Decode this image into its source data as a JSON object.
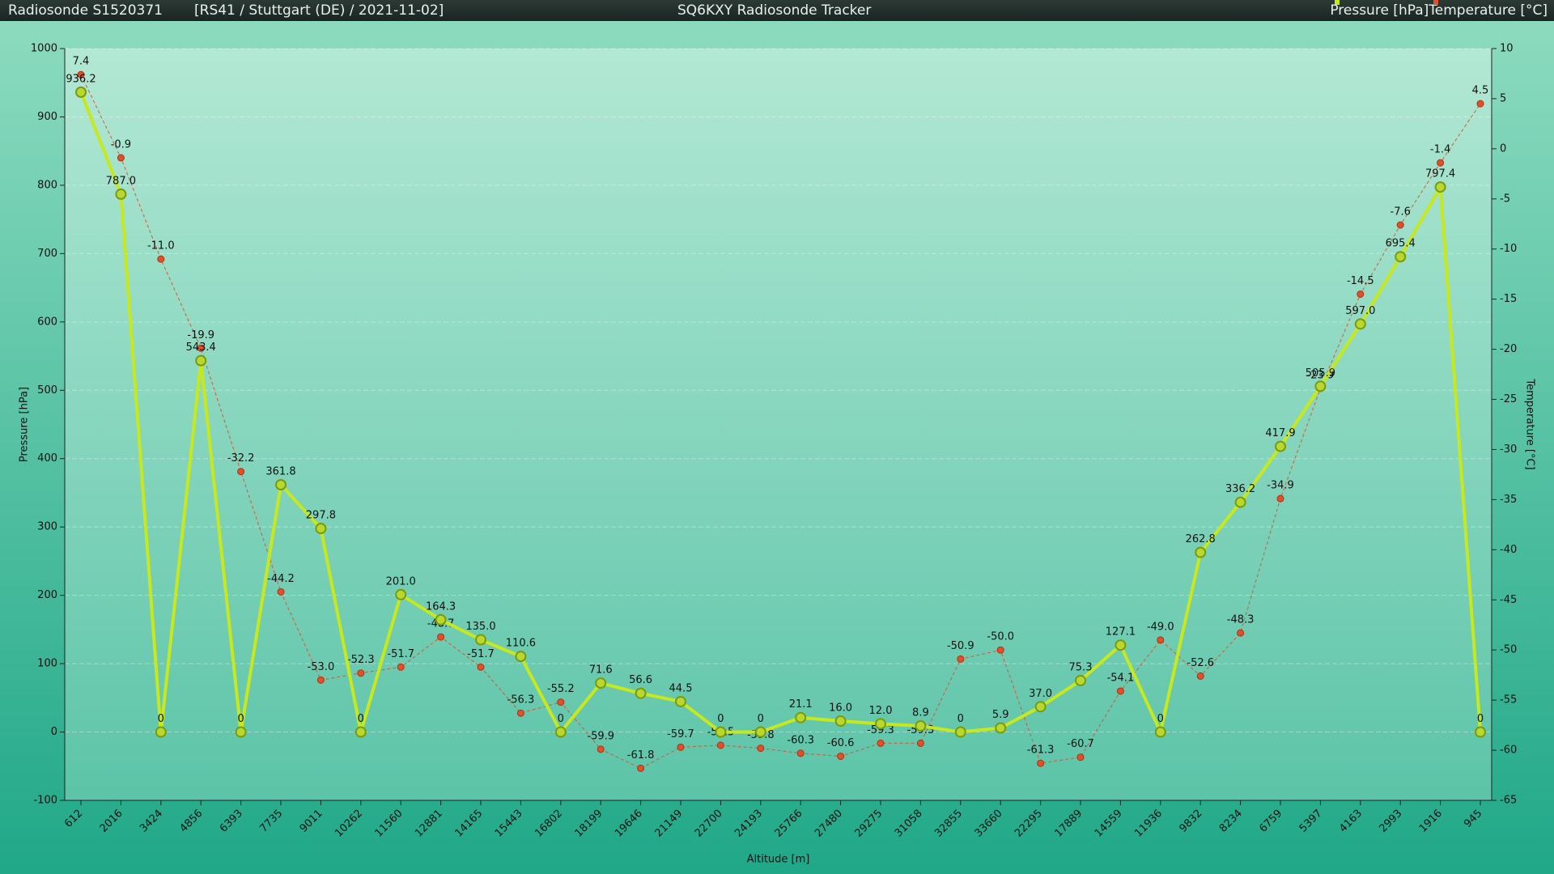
{
  "header": {
    "sonde": "Radiosonde S1520371",
    "info": "[RS41 / Stuttgart (DE) / 2021-11-02]",
    "app_title": "SQ6KXY Radiosonde Tracker"
  },
  "chart_data": {
    "type": "line",
    "x_label": "Altitude [m]",
    "y_label": "Pressure [hPa]",
    "y2_label": "Temperature [°C]",
    "categories": [
      "612",
      "2016",
      "3424",
      "4856",
      "6393",
      "7735",
      "9011",
      "10262",
      "11560",
      "12881",
      "14165",
      "15443",
      "16802",
      "18199",
      "19646",
      "21149",
      "22700",
      "24193",
      "25766",
      "27480",
      "29275",
      "31058",
      "32855",
      "33660",
      "22295",
      "17889",
      "14559",
      "11936",
      "9832",
      "8234",
      "6759",
      "5397",
      "4163",
      "2993",
      "1916",
      "945"
    ],
    "ylim": [
      -100,
      1000
    ],
    "yticks": [
      -100,
      0,
      100,
      200,
      300,
      400,
      500,
      600,
      700,
      800,
      900,
      1000
    ],
    "y2lim": [
      -65,
      10
    ],
    "y2ticks": [
      -65,
      -60,
      -55,
      -50,
      -45,
      -40,
      -35,
      -30,
      -25,
      -20,
      -15,
      -10,
      -5,
      0,
      5,
      10
    ],
    "grid": true,
    "legend": "top-right",
    "series": [
      {
        "name": "Pressure [hPa]",
        "color": "#c8e81e",
        "axis": "y",
        "values": [
          936.2,
          787.0,
          0,
          543.4,
          0,
          361.8,
          297.8,
          0,
          201.0,
          164.3,
          135.0,
          110.6,
          0,
          71.6,
          56.6,
          44.5,
          0,
          0,
          21.1,
          16.0,
          12.0,
          8.9,
          0,
          5.9,
          37.0,
          75.3,
          127.1,
          0,
          262.8,
          336.2,
          417.9,
          505.9,
          597.0,
          695.4,
          797.4,
          0
        ],
        "value_labels": [
          "936.2",
          "787.0",
          "0",
          "543.4",
          "0",
          "361.8",
          "297.8",
          "0",
          "201.0",
          "164.3",
          "135.0",
          "110.6",
          "0",
          "71.6",
          "56.6",
          "44.5",
          "0",
          "0",
          "21.1",
          "16.0",
          "12.0",
          "8.9",
          "0",
          "5.9",
          "37.0",
          "75.3",
          "127.1",
          "0",
          "262.8",
          "336.2",
          "417.9",
          "505.9",
          "597.0",
          "695.4",
          "797.4",
          "0"
        ]
      },
      {
        "name": "Temperature [°C]",
        "color": "#e0502a",
        "axis": "y2",
        "values": [
          7.4,
          -0.9,
          -11.0,
          -19.9,
          -32.2,
          -44.2,
          -53.0,
          -52.3,
          -51.7,
          -48.7,
          -51.7,
          -56.3,
          -55.2,
          -59.9,
          -61.8,
          -59.7,
          -59.5,
          -59.8,
          -60.3,
          -60.6,
          -59.3,
          -59.3,
          -50.9,
          -50.0,
          -61.3,
          -60.7,
          -54.1,
          -49.0,
          -52.6,
          -48.3,
          -34.9,
          -23.9,
          -14.5,
          -7.6,
          -1.4,
          4.5
        ],
        "value_labels": [
          "7.4",
          "-0.9",
          "-11.0",
          "-19.9",
          "-32.2",
          "-44.2",
          "-53.0",
          "-52.3",
          "-51.7",
          "-48.7",
          "-51.7",
          "-56.3",
          "-55.2",
          "-59.9",
          "-61.8",
          "-59.7",
          "-59.5",
          "-59.8",
          "-60.3",
          "-60.6",
          "-59.3",
          "-59.3",
          "-50.9",
          "-50.0",
          "-61.3",
          "-60.7",
          "-54.1",
          "-49.0",
          "-52.6",
          "-48.3",
          "-34.9",
          "-23.9",
          "-14.5",
          "-7.6",
          "-1.4",
          "4.5"
        ]
      }
    ]
  }
}
